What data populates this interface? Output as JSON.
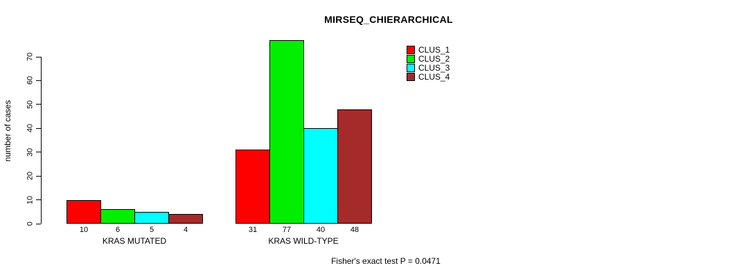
{
  "chart_data": {
    "type": "bar",
    "title": "MIRSEQ_CHIERARCHICAL",
    "xlabel": "",
    "ylabel": "number of cases",
    "ylim": [
      0,
      70
    ],
    "yticks": [
      0,
      10,
      20,
      30,
      40,
      50,
      60,
      70
    ],
    "grid": false,
    "legend_position": "top-right-inside",
    "categories": [
      "KRAS MUTATED",
      "KRAS WILD-TYPE"
    ],
    "series": [
      {
        "name": "CLUS_1",
        "color": "#ff0000",
        "values": [
          10,
          31
        ]
      },
      {
        "name": "CLUS_2",
        "color": "#00ee00",
        "values": [
          6,
          77
        ]
      },
      {
        "name": "CLUS_3",
        "color": "#00ffff",
        "values": [
          5,
          40
        ]
      },
      {
        "name": "CLUS_4",
        "color": "#a52a2a",
        "values": [
          4,
          48
        ]
      }
    ],
    "bar_value_labels": [
      [
        10,
        6,
        5,
        4
      ],
      [
        31,
        77,
        40,
        48
      ]
    ],
    "bar_border_color": "#000000",
    "axis_color": "#000000"
  },
  "footer": {
    "note": "Fisher's exact test P = 0.0471"
  }
}
